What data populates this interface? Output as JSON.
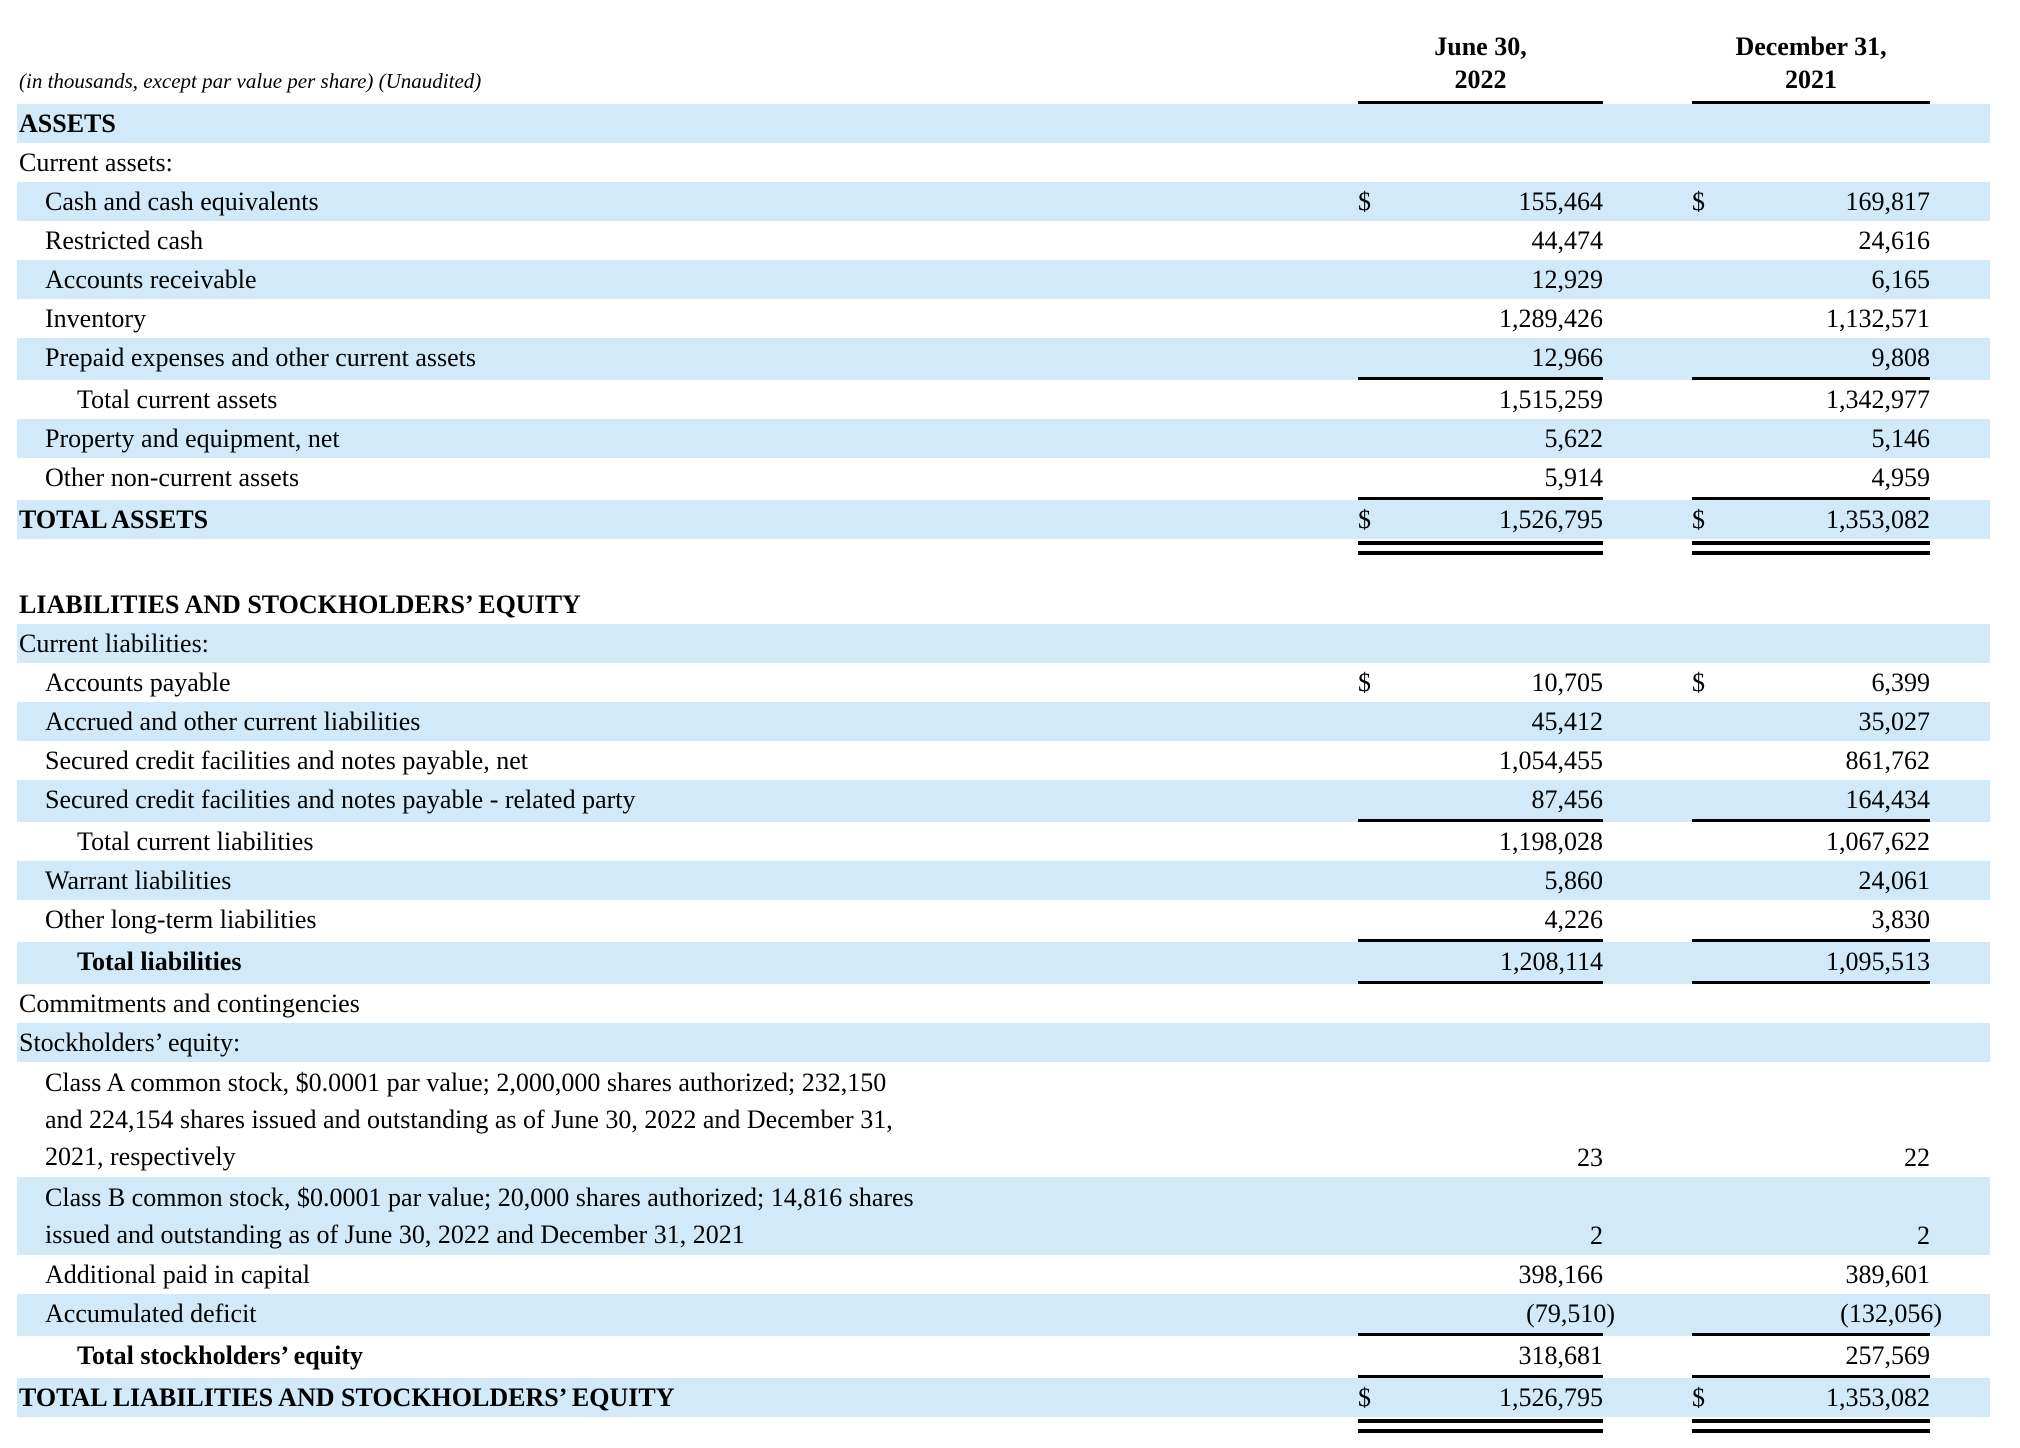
{
  "caption": "(in thousands, except par value per share) (Unaudited)",
  "colors": {
    "band": "#D1E9F8",
    "ink": "#000000"
  },
  "columns": [
    {
      "label_line1": "June 30,",
      "label_line2": "2022"
    },
    {
      "label_line1": "December 31,",
      "label_line2": "2021"
    }
  ],
  "rows": [
    {
      "label": "ASSETS",
      "indent": 0,
      "bold": true,
      "shade": true
    },
    {
      "label": "Current assets:",
      "indent": 0
    },
    {
      "label": "Cash and cash equivalents",
      "indent": 1,
      "shade": true,
      "d1": "$",
      "v1": "155,464",
      "d2": "$",
      "v2": "169,817"
    },
    {
      "label": "Restricted cash",
      "indent": 1,
      "v1": "44,474",
      "v2": "24,616"
    },
    {
      "label": "Accounts receivable",
      "indent": 1,
      "shade": true,
      "v1": "12,929",
      "v2": "6,165"
    },
    {
      "label": "Inventory",
      "indent": 1,
      "v1": "1,289,426",
      "v2": "1,132,571"
    },
    {
      "label": "Prepaid expenses and other current assets",
      "indent": 1,
      "shade": true,
      "v1": "12,966",
      "v2": "9,808",
      "rule": true
    },
    {
      "label": "Total current assets",
      "indent": 2,
      "v1": "1,515,259",
      "v2": "1,342,977"
    },
    {
      "label": "Property and equipment, net",
      "indent": 1,
      "shade": true,
      "v1": "5,622",
      "v2": "5,146"
    },
    {
      "label": "Other non-current assets",
      "indent": 1,
      "v1": "5,914",
      "v2": "4,959",
      "rule": true
    },
    {
      "label": "TOTAL ASSETS",
      "indent": 0,
      "bold": true,
      "shade": true,
      "d1": "$",
      "v1": "1,526,795",
      "d2": "$",
      "v2": "1,353,082",
      "after": "double",
      "gap": true
    },
    {
      "label": "LIABILITIES AND STOCKHOLDERS’ EQUITY",
      "indent": 0,
      "bold": true
    },
    {
      "label": "Current liabilities:",
      "indent": 0,
      "shade": true
    },
    {
      "label": "Accounts payable",
      "indent": 1,
      "d1": "$",
      "v1": "10,705",
      "d2": "$",
      "v2": "6,399"
    },
    {
      "label": "Accrued and other current liabilities",
      "indent": 1,
      "shade": true,
      "v1": "45,412",
      "v2": "35,027"
    },
    {
      "label": "Secured credit facilities and notes payable, net",
      "indent": 1,
      "v1": "1,054,455",
      "v2": "861,762"
    },
    {
      "label": "Secured credit facilities and notes payable - related party",
      "indent": 1,
      "shade": true,
      "v1": "87,456",
      "v2": "164,434",
      "rule": true
    },
    {
      "label": "Total current liabilities",
      "indent": 2,
      "v1": "1,198,028",
      "v2": "1,067,622"
    },
    {
      "label": "Warrant liabilities",
      "indent": 1,
      "shade": true,
      "v1": "5,860",
      "v2": "24,061"
    },
    {
      "label": "Other long-term liabilities",
      "indent": 1,
      "v1": "4,226",
      "v2": "3,830",
      "rule": true
    },
    {
      "label": "Total liabilities",
      "indent": 2,
      "bold": true,
      "shade": true,
      "v1": "1,208,114",
      "v2": "1,095,513",
      "rule": true
    },
    {
      "label": "Commitments and contingencies",
      "indent": 0
    },
    {
      "label": "Stockholders’ equity:",
      "indent": 0,
      "shade": true
    },
    {
      "lines": [
        "Class A common stock, $0.0001 par value; 2,000,000 shares authorized; 232,150",
        "and 224,154 shares issued and outstanding as of June 30, 2022 and December 31,",
        "2021, respectively"
      ],
      "indent": 1,
      "v1": "23",
      "v2": "22"
    },
    {
      "lines": [
        "Class B common stock, $0.0001 par value; 20,000 shares authorized; 14,816 shares",
        "issued and outstanding as of June 30, 2022 and December 31, 2021"
      ],
      "indent": 1,
      "shade": true,
      "v1": "2",
      "v2": "2"
    },
    {
      "label": "Additional paid in capital",
      "indent": 1,
      "v1": "398,166",
      "v2": "389,601"
    },
    {
      "label": "Accumulated deficit",
      "indent": 1,
      "shade": true,
      "v1": "(79,510)",
      "v2": "(132,056)",
      "rule": true
    },
    {
      "label": "Total stockholders’ equity",
      "indent": 2,
      "bold": true,
      "v1": "318,681",
      "v2": "257,569",
      "rule": true
    },
    {
      "label": "TOTAL LIABILITIES AND STOCKHOLDERS’ EQUITY",
      "indent": 0,
      "bold": true,
      "shade": true,
      "d1": "$",
      "v1": "1,526,795",
      "d2": "$",
      "v2": "1,353,082",
      "after": "double"
    }
  ]
}
